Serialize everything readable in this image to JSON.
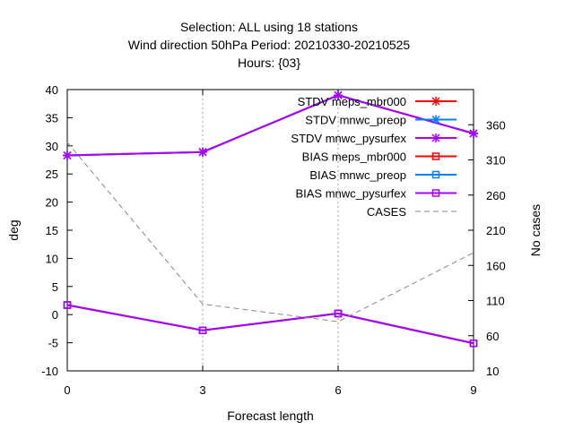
{
  "chart_data": {
    "type": "line",
    "title_lines": [
      "Selection: ALL using    18 stations",
      "Wind direction 50hPa   Period: 20210330-20210525",
      "Hours: {03}"
    ],
    "xlabel": "Forecast length",
    "ylabel": "deg",
    "y2label": "No cases",
    "x": [
      0,
      3,
      6,
      9
    ],
    "xlim": [
      0,
      9
    ],
    "ylim": [
      -10,
      40
    ],
    "y2lim": [
      10,
      410
    ],
    "x_ticks": [
      0,
      3,
      6,
      9
    ],
    "y_ticks": [
      -10,
      -5,
      0,
      5,
      10,
      15,
      20,
      25,
      30,
      35,
      40
    ],
    "y2_ticks": [
      10,
      60,
      110,
      160,
      210,
      260,
      310,
      360
    ],
    "grid": "dotted, at x ticks",
    "legend_position": "top-right",
    "series": [
      {
        "name": "STDV meps_mbr000",
        "values": [
          28.3,
          28.9,
          39.0,
          32.2
        ],
        "color": "#ff0000",
        "marker": "x-star",
        "axis": "y"
      },
      {
        "name": "STDV mnwc_preop",
        "values": [
          28.3,
          28.9,
          39.0,
          32.2
        ],
        "color": "#0080ff",
        "marker": "x-star",
        "axis": "y"
      },
      {
        "name": "STDV mnwc_pysurfex",
        "values": [
          28.3,
          28.9,
          39.0,
          32.2
        ],
        "color": "#aa00ff",
        "marker": "x-star",
        "axis": "y"
      },
      {
        "name": "BIAS meps_mbr000",
        "values": [
          1.7,
          -2.8,
          0.2,
          -5.1
        ],
        "color": "#ff0000",
        "marker": "square",
        "axis": "y"
      },
      {
        "name": "BIAS mnwc_preop",
        "values": [
          1.7,
          -2.8,
          0.2,
          -5.1
        ],
        "color": "#0080ff",
        "marker": "square",
        "axis": "y"
      },
      {
        "name": "BIAS mnwc_pysurfex",
        "values": [
          1.7,
          -2.8,
          0.2,
          -5.1
        ],
        "color": "#aa00ff",
        "marker": "square",
        "axis": "y"
      },
      {
        "name": "CASES",
        "values": [
          335,
          105,
          80,
          178
        ],
        "color": "#888888",
        "marker": "none",
        "dash": "dashed",
        "axis": "y2"
      }
    ]
  }
}
